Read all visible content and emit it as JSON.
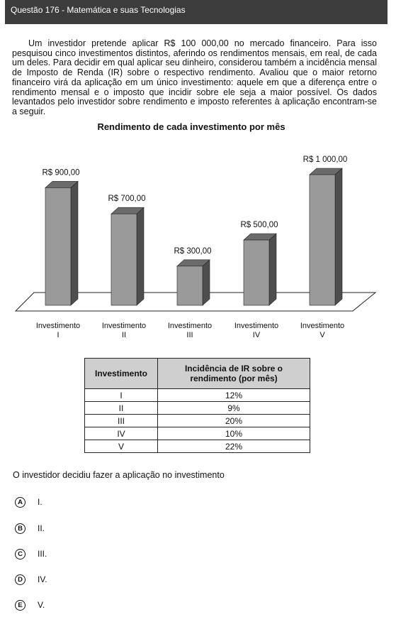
{
  "header": {
    "title": "Questão 176 - Matemática e suas Tecnologias"
  },
  "question": {
    "paragraph": "Um investidor pretende aplicar R$ 100 000,00 no mercado financeiro. Para isso pesquisou cinco investimentos distintos, aferindo os rendimentos mensais, em real, de cada um deles. Para decidir em qual aplicar seu dinheiro, considerou também a incidência mensal de Imposto de Renda (IR) sobre o respectivo rendimento. Avaliou que o maior retorno financeiro virá da aplicação em um único investimento: aquele em que a diferença entre o rendimento mensal e o imposto que incidir sobre ele seja a maior possível. Os dados levantados pelo investidor sobre rendimento e imposto referentes à aplicação encontram-se a seguir.",
    "prompt": "O investidor decidiu fazer a aplicação no investimento"
  },
  "chart_data": {
    "type": "bar",
    "title": "Rendimento de cada investimento por mês",
    "categories": [
      {
        "line1": "Investimento",
        "line2": "I"
      },
      {
        "line1": "Investimento",
        "line2": "II"
      },
      {
        "line1": "Investimento",
        "line2": "III"
      },
      {
        "line1": "Investimento",
        "line2": "IV"
      },
      {
        "line1": "Investimento",
        "line2": "V"
      }
    ],
    "values": [
      900,
      700,
      300,
      500,
      1000
    ],
    "value_labels": [
      "R$ 900,00",
      "R$ 700,00",
      "R$ 300,00",
      "R$ 500,00",
      "R$ 1 000,00"
    ],
    "ylim": [
      0,
      1000
    ],
    "grid": false,
    "colors": {
      "front": "#9a9a9a",
      "side": "#4e4e4e",
      "top": "#6b6b6b"
    }
  },
  "table": {
    "headers": [
      "Investimento",
      "Incidência de IR sobre o rendimento (por mês)"
    ],
    "rows": [
      [
        "I",
        "12%"
      ],
      [
        "II",
        "9%"
      ],
      [
        "III",
        "20%"
      ],
      [
        "IV",
        "10%"
      ],
      [
        "V",
        "22%"
      ]
    ]
  },
  "options": [
    {
      "letter": "A",
      "text": "I."
    },
    {
      "letter": "B",
      "text": "II."
    },
    {
      "letter": "C",
      "text": "III."
    },
    {
      "letter": "D",
      "text": "IV."
    },
    {
      "letter": "E",
      "text": "V."
    }
  ]
}
